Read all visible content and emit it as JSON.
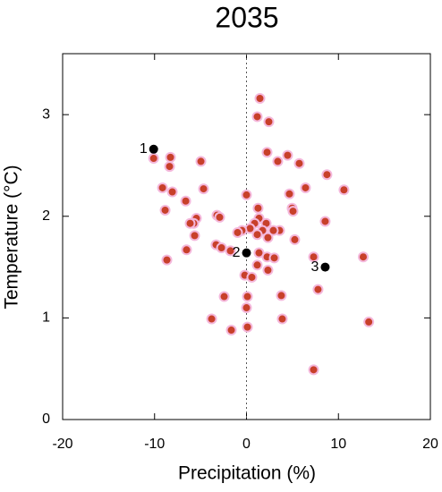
{
  "chart_data": {
    "type": "scatter",
    "title": "2035",
    "x_label": "Precipitation (%)",
    "y_label": "Temperature (°C)",
    "xlim": [
      -20,
      20
    ],
    "ylim": [
      0,
      3.6
    ],
    "xticks": [
      -20,
      -10,
      0,
      10,
      20
    ],
    "yticks": [
      0,
      1,
      2,
      3
    ],
    "reference_x": 0,
    "series": [
      {
        "color": "#c8402a",
        "x": [
          1.46,
          1.17,
          2.43,
          2.24,
          4.47,
          3.4,
          5.74,
          -10.1,
          -8.27,
          -8.37,
          -4.96,
          8.75,
          6.42,
          10.6,
          -9.14,
          -8.07,
          -4.67,
          -6.61,
          0,
          4.67,
          1.26,
          4.96,
          5.06,
          -8.85,
          -3.21,
          -2.92,
          -5.45,
          -5.74,
          -6.13,
          1.36,
          0.88,
          2.14,
          8.56,
          0.39,
          -0.49,
          -0.97,
          1.75,
          3.6,
          2.92,
          1.17,
          2.33,
          5.25,
          -5.64,
          -3.31,
          -2.72,
          -1.75,
          -6.52,
          1.36,
          2.24,
          3.02,
          7.3,
          12.7,
          -8.66,
          1.17,
          2.33,
          -0.19,
          0.58,
          7.78,
          0.1,
          -2.43,
          3.79,
          0,
          -3.79,
          3.89,
          0.1,
          -1.65,
          13.3,
          7.3
        ],
        "values": [
          3.16,
          2.98,
          2.93,
          2.63,
          2.6,
          2.54,
          2.52,
          2.57,
          2.58,
          2.49,
          2.54,
          2.41,
          2.28,
          2.26,
          2.28,
          2.24,
          2.27,
          2.15,
          2.21,
          2.22,
          2.08,
          2.08,
          2.05,
          2.06,
          2.01,
          1.99,
          1.98,
          1.93,
          1.93,
          1.98,
          1.93,
          1.93,
          1.95,
          1.88,
          1.86,
          1.84,
          1.86,
          1.86,
          1.86,
          1.82,
          1.79,
          1.77,
          1.81,
          1.72,
          1.69,
          1.66,
          1.67,
          1.64,
          1.6,
          1.59,
          1.6,
          1.6,
          1.57,
          1.52,
          1.47,
          1.42,
          1.4,
          1.28,
          1.21,
          1.21,
          1.22,
          1.1,
          0.99,
          0.99,
          0.91,
          0.88,
          0.96,
          0.49
        ]
      },
      {
        "color": "#000000",
        "labels": [
          "1",
          "2",
          "3"
        ],
        "x": [
          -10.1,
          0,
          8.56
        ],
        "values": [
          2.66,
          1.64,
          1.5
        ]
      }
    ]
  }
}
